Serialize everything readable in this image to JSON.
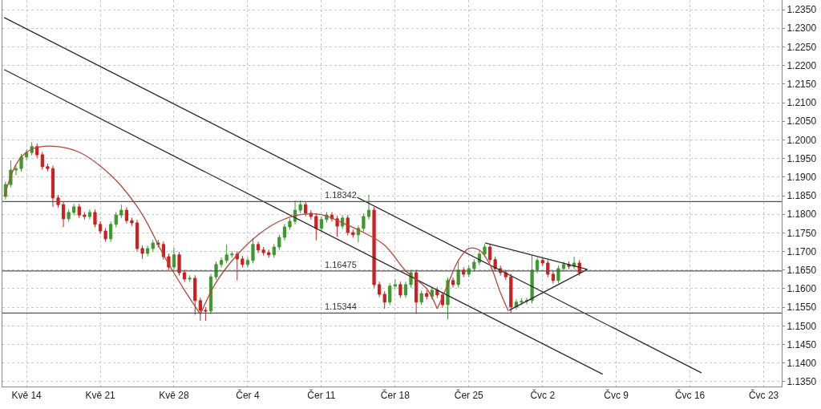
{
  "chart_data": {
    "type": "candlestick",
    "x": [
      "--05-12T00:00",
      "--05-12T12:00",
      "--05-13T00:00",
      "--05-13T12:00",
      "--05-14T00:00",
      "--05-14T12:00",
      "--05-15T00:00",
      "--05-15T12:00",
      "--05-16T00:00",
      "--05-16T12:00",
      "--05-17T00:00",
      "--05-17T12:00",
      "--05-18T00:00",
      "--05-18T12:00",
      "--05-19T00:00",
      "--05-19T12:00",
      "--05-20T00:00",
      "--05-20T12:00",
      "--05-21T00:00",
      "--05-21T12:00",
      "--05-22T00:00",
      "--05-22T12:00",
      "--05-23T00:00",
      "--05-23T12:00",
      "--05-24T00:00",
      "--05-24T12:00",
      "--05-25T00:00",
      "--05-25T12:00",
      "--05-26T00:00",
      "--05-26T12:00",
      "--05-27T00:00",
      "--05-27T12:00",
      "--05-28T00:00",
      "--05-28T12:00",
      "--05-29T00:00",
      "--05-29T12:00",
      "--05-30T00:00",
      "--05-30T12:00",
      "--05-31T00:00",
      "--05-31T12:00",
      "--06-01T00:00",
      "--06-01T12:00",
      "--06-02T00:00",
      "--06-02T12:00",
      "--06-03T00:00",
      "--06-03T12:00",
      "--06-04T00:00",
      "--06-04T12:00",
      "--06-05T00:00",
      "--06-05T12:00",
      "--06-06T00:00",
      "--06-06T12:00",
      "--06-07T00:00",
      "--06-07T12:00",
      "--06-08T00:00",
      "--06-08T12:00",
      "--06-09T00:00",
      "--06-09T12:00",
      "--06-10T00:00",
      "--06-10T12:00",
      "--06-11T00:00",
      "--06-11T12:00",
      "--06-12T00:00",
      "--06-12T12:00",
      "--06-13T00:00",
      "--06-13T12:00",
      "--06-14T00:00",
      "--06-14T12:00",
      "--06-15T00:00",
      "--06-15T12:00",
      "--06-16T00:00",
      "--06-16T12:00",
      "--06-17T00:00",
      "--06-17T12:00",
      "--06-18T00:00",
      "--06-18T12:00",
      "--06-19T00:00",
      "--06-19T12:00",
      "--06-20T00:00",
      "--06-20T12:00",
      "--06-21T00:00",
      "--06-21T12:00",
      "--06-22T00:00",
      "--06-22T12:00",
      "--06-23T00:00",
      "--06-23T12:00",
      "--06-24T00:00",
      "--06-24T12:00",
      "--06-25T00:00",
      "--06-25T12:00",
      "--06-26T00:00",
      "--06-26T12:00",
      "--06-27T00:00",
      "--06-27T12:00",
      "--06-28T00:00",
      "--06-28T12:00",
      "--06-29T00:00",
      "--06-29T12:00",
      "--06-30T00:00",
      "--06-30T12:00",
      "--07-01T00:00",
      "--07-01T12:00",
      "--07-02T00:00",
      "--07-02T12:00",
      "--07-03T00:00",
      "--07-03T12:00",
      "--07-04T00:00",
      "--07-04T12:00",
      "--07-05T00:00",
      "--07-05T12:00"
    ],
    "ohlc": [
      [
        1.1848,
        1.1888,
        1.184,
        1.188
      ],
      [
        1.188,
        1.1945,
        1.1872,
        1.1919
      ],
      [
        1.1919,
        1.1931,
        1.1905,
        1.1923
      ],
      [
        1.1923,
        1.1962,
        1.1915,
        1.1954
      ],
      [
        1.1954,
        1.1974,
        1.1946,
        1.1966
      ],
      [
        1.1966,
        1.1994,
        1.1958,
        1.1982
      ],
      [
        1.1982,
        1.199,
        1.1952,
        1.196
      ],
      [
        1.196,
        1.1968,
        1.192,
        1.1928
      ],
      [
        1.1928,
        1.1936,
        1.1915,
        1.1923
      ],
      [
        1.1923,
        1.1931,
        1.182,
        1.1844
      ],
      [
        1.1844,
        1.1852,
        1.1818,
        1.1826
      ],
      [
        1.1826,
        1.1834,
        1.1766,
        1.1788
      ],
      [
        1.1788,
        1.1813,
        1.178,
        1.1805
      ],
      [
        1.1805,
        1.1828,
        1.1797,
        1.182
      ],
      [
        1.182,
        1.1828,
        1.179,
        1.1798
      ],
      [
        1.1798,
        1.1806,
        1.1786,
        1.1794
      ],
      [
        1.1794,
        1.1813,
        1.1786,
        1.1805
      ],
      [
        1.1805,
        1.1813,
        1.1765,
        1.1773
      ],
      [
        1.1773,
        1.1781,
        1.1747,
        1.1755
      ],
      [
        1.1755,
        1.1763,
        1.1726,
        1.1734
      ],
      [
        1.1734,
        1.1781,
        1.1726,
        1.1773
      ],
      [
        1.1773,
        1.1806,
        1.1765,
        1.1798
      ],
      [
        1.1798,
        1.1826,
        1.179,
        1.1811
      ],
      [
        1.1811,
        1.1819,
        1.1775,
        1.1783
      ],
      [
        1.1783,
        1.1791,
        1.1769,
        1.1777
      ],
      [
        1.1777,
        1.1785,
        1.17,
        1.1708
      ],
      [
        1.1708,
        1.1716,
        1.168,
        1.1695
      ],
      [
        1.1695,
        1.1716,
        1.1687,
        1.1708
      ],
      [
        1.1708,
        1.1731,
        1.17,
        1.1723
      ],
      [
        1.1723,
        1.1731,
        1.1711,
        1.1719
      ],
      [
        1.1719,
        1.1727,
        1.1678,
        1.1686
      ],
      [
        1.1686,
        1.1694,
        1.165,
        1.1658
      ],
      [
        1.1658,
        1.171,
        1.165,
        1.1691
      ],
      [
        1.1691,
        1.1699,
        1.1635,
        1.1643
      ],
      [
        1.1643,
        1.1651,
        1.1618,
        1.1626
      ],
      [
        1.1626,
        1.1636,
        1.1618,
        1.1628
      ],
      [
        1.1628,
        1.1636,
        1.153,
        1.1568
      ],
      [
        1.1568,
        1.1576,
        1.1514,
        1.1542
      ],
      [
        1.1542,
        1.155,
        1.1514,
        1.154
      ],
      [
        1.154,
        1.164,
        1.1532,
        1.1632
      ],
      [
        1.1632,
        1.1673,
        1.1624,
        1.1665
      ],
      [
        1.1665,
        1.1684,
        1.1657,
        1.1676
      ],
      [
        1.1676,
        1.1719,
        1.1668,
        1.1691
      ],
      [
        1.1691,
        1.1701,
        1.1683,
        1.1693
      ],
      [
        1.1693,
        1.1701,
        1.1622,
        1.168
      ],
      [
        1.168,
        1.1688,
        1.1657,
        1.1665
      ],
      [
        1.1665,
        1.1684,
        1.1657,
        1.1676
      ],
      [
        1.1676,
        1.1736,
        1.1668,
        1.1719
      ],
      [
        1.1719,
        1.1727,
        1.1696,
        1.1704
      ],
      [
        1.1704,
        1.1712,
        1.1689,
        1.1697
      ],
      [
        1.1697,
        1.1705,
        1.1683,
        1.1691
      ],
      [
        1.1691,
        1.172,
        1.1683,
        1.1712
      ],
      [
        1.1712,
        1.1746,
        1.1704,
        1.1738
      ],
      [
        1.1738,
        1.1774,
        1.173,
        1.1766
      ],
      [
        1.1766,
        1.1789,
        1.1758,
        1.1781
      ],
      [
        1.1781,
        1.1837,
        1.1773,
        1.1811
      ],
      [
        1.1811,
        1.1837,
        1.1803,
        1.1826
      ],
      [
        1.1826,
        1.1834,
        1.1795,
        1.1803
      ],
      [
        1.1803,
        1.1811,
        1.1786,
        1.1794
      ],
      [
        1.1794,
        1.1802,
        1.173,
        1.1762
      ],
      [
        1.1762,
        1.1794,
        1.1754,
        1.1786
      ],
      [
        1.1786,
        1.1806,
        1.1778,
        1.1798
      ],
      [
        1.1798,
        1.1806,
        1.178,
        1.1788
      ],
      [
        1.1788,
        1.1796,
        1.174,
        1.1768
      ],
      [
        1.1768,
        1.1798,
        1.176,
        1.179
      ],
      [
        1.179,
        1.1798,
        1.1743,
        1.1751
      ],
      [
        1.1751,
        1.1759,
        1.1737,
        1.1745
      ],
      [
        1.1745,
        1.177,
        1.1725,
        1.1762
      ],
      [
        1.1762,
        1.1802,
        1.1754,
        1.1794
      ],
      [
        1.1794,
        1.1852,
        1.1786,
        1.1811
      ],
      [
        1.1811,
        1.1819,
        1.1603,
        1.1611
      ],
      [
        1.1611,
        1.1619,
        1.1577,
        1.1585
      ],
      [
        1.1585,
        1.1593,
        1.1546,
        1.1564
      ],
      [
        1.1564,
        1.1615,
        1.1556,
        1.1607
      ],
      [
        1.1607,
        1.1625,
        1.1599,
        1.1611
      ],
      [
        1.1611,
        1.1619,
        1.1575,
        1.1583
      ],
      [
        1.1583,
        1.1619,
        1.1575,
        1.1611
      ],
      [
        1.1611,
        1.1651,
        1.1603,
        1.1643
      ],
      [
        1.1643,
        1.1651,
        1.1532,
        1.1564
      ],
      [
        1.1564,
        1.1595,
        1.1556,
        1.1587
      ],
      [
        1.1587,
        1.1595,
        1.1571,
        1.1579
      ],
      [
        1.1579,
        1.1604,
        1.1571,
        1.1596
      ],
      [
        1.1596,
        1.1604,
        1.1575,
        1.1583
      ],
      [
        1.1583,
        1.1591,
        1.1549,
        1.1557
      ],
      [
        1.1557,
        1.163,
        1.1518,
        1.1622
      ],
      [
        1.1622,
        1.163,
        1.1603,
        1.1611
      ],
      [
        1.1611,
        1.1676,
        1.1603,
        1.165
      ],
      [
        1.165,
        1.1658,
        1.1631,
        1.1639
      ],
      [
        1.1639,
        1.1662,
        1.1631,
        1.1654
      ],
      [
        1.1654,
        1.1679,
        1.1646,
        1.1671
      ],
      [
        1.1671,
        1.1701,
        1.1663,
        1.1693
      ],
      [
        1.1693,
        1.172,
        1.1685,
        1.1712
      ],
      [
        1.1712,
        1.172,
        1.167,
        1.1678
      ],
      [
        1.1678,
        1.1686,
        1.1646,
        1.1654
      ],
      [
        1.1654,
        1.1662,
        1.1635,
        1.1643
      ],
      [
        1.1643,
        1.1651,
        1.1624,
        1.1632
      ],
      [
        1.1632,
        1.164,
        1.1536,
        1.1551
      ],
      [
        1.1551,
        1.1572,
        1.1543,
        1.1564
      ],
      [
        1.1564,
        1.1574,
        1.1556,
        1.1566
      ],
      [
        1.1566,
        1.1576,
        1.1558,
        1.1568
      ],
      [
        1.1568,
        1.169,
        1.156,
        1.165
      ],
      [
        1.165,
        1.1684,
        1.1642,
        1.1676
      ],
      [
        1.1676,
        1.1684,
        1.1661,
        1.1669
      ],
      [
        1.1669,
        1.1677,
        1.1631,
        1.1639
      ],
      [
        1.1639,
        1.1647,
        1.1614,
        1.1622
      ],
      [
        1.1622,
        1.1662,
        1.1614,
        1.1654
      ],
      [
        1.1654,
        1.1673,
        1.1646,
        1.1665
      ],
      [
        1.1665,
        1.1673,
        1.1652,
        1.166
      ],
      [
        1.166,
        1.1686,
        1.1652,
        1.1669
      ],
      [
        1.1669,
        1.1677,
        1.1635,
        1.1643
      ]
    ],
    "colors": [
      "#3c9a2e",
      "#3c9a2e",
      "#3c9a2e",
      "#3c9a2e",
      "#3c9a2e",
      "#3c9a2e",
      "#cc1f1f",
      "#cc1f1f",
      "#cc1f1f",
      "#cc1f1f",
      "#cc1f1f",
      "#cc1f1f",
      "#3c9a2e",
      "#3c9a2e",
      "#cc1f1f",
      "#cc1f1f",
      "#3c9a2e",
      "#cc1f1f",
      "#cc1f1f",
      "#cc1f1f",
      "#3c9a2e",
      "#3c9a2e",
      "#3c9a2e",
      "#cc1f1f",
      "#cc1f1f",
      "#cc1f1f",
      "#cc1f1f",
      "#3c9a2e",
      "#3c9a2e",
      "#cc1f1f",
      "#cc1f1f",
      "#cc1f1f",
      "#3c9a2e",
      "#cc1f1f",
      "#cc1f1f",
      "#3c9a2e",
      "#cc1f1f",
      "#cc1f1f",
      "#cc1f1f",
      "#3c9a2e",
      "#3c9a2e",
      "#3c9a2e",
      "#3c9a2e",
      "#3c9a2e",
      "#cc1f1f",
      "#cc1f1f",
      "#3c9a2e",
      "#3c9a2e",
      "#cc1f1f",
      "#cc1f1f",
      "#cc1f1f",
      "#3c9a2e",
      "#3c9a2e",
      "#3c9a2e",
      "#3c9a2e",
      "#3c9a2e",
      "#3c9a2e",
      "#cc1f1f",
      "#cc1f1f",
      "#cc1f1f",
      "#3c9a2e",
      "#3c9a2e",
      "#cc1f1f",
      "#cc1f1f",
      "#3c9a2e",
      "#cc1f1f",
      "#cc1f1f",
      "#3c9a2e",
      "#3c9a2e",
      "#3c9a2e",
      "#cc1f1f",
      "#cc1f1f",
      "#cc1f1f",
      "#3c9a2e",
      "#3c9a2e",
      "#cc1f1f",
      "#3c9a2e",
      "#3c9a2e",
      "#cc1f1f",
      "#3c9a2e",
      "#cc1f1f",
      "#3c9a2e",
      "#cc1f1f",
      "#cc1f1f",
      "#3c9a2e",
      "#cc1f1f",
      "#3c9a2e",
      "#cc1f1f",
      "#3c9a2e",
      "#3c9a2e",
      "#3c9a2e",
      "#3c9a2e",
      "#cc1f1f",
      "#cc1f1f",
      "#cc1f1f",
      "#cc1f1f",
      "#cc1f1f",
      "#3c9a2e",
      "#3c9a2e",
      "#3c9a2e",
      "#3c9a2e",
      "#3c9a2e",
      "#cc1f1f",
      "#cc1f1f",
      "#cc1f1f",
      "#3c9a2e",
      "#3c9a2e",
      "#cc1f1f",
      "#3c9a2e",
      "#cc1f1f"
    ],
    "series": [
      {
        "type": "line",
        "color": "#2b2b2b",
        "x": [
          "--05-11T21:00",
          "--07-17T02:00"
        ],
        "values": [
          1.2329,
          1.1374
        ]
      },
      {
        "type": "line",
        "color": "#2b2b2b",
        "x": [
          "--05-11T21:00",
          "--07-07T17:00"
        ],
        "values": [
          1.2189,
          1.137
        ]
      },
      {
        "type": "line",
        "color": "#2b2b2b",
        "x": [
          "--06-26T13:00",
          "--07-06T06:00"
        ],
        "values": [
          1.1723,
          1.1652
        ]
      },
      {
        "type": "line",
        "color": "#2b2b2b",
        "x": [
          "--06-28T20:00",
          "--07-06T06:00"
        ],
        "values": [
          1.1542,
          1.1652
        ]
      },
      {
        "type": "line",
        "color": "#b8463a",
        "x": [
          "--05-11T21:00",
          "--05-13",
          "--05-14",
          "--05-15",
          "--05-17",
          "--05-19",
          "--05-21",
          "--05-23",
          "--05-25",
          "--05-27",
          "--05-29",
          "--05-30",
          "--05-30T12:00"
        ],
        "values": [
          1.1848,
          1.1934,
          1.1967,
          1.198,
          1.1982,
          1.1967,
          1.193,
          1.1876,
          1.1799,
          1.1691,
          1.1596,
          1.1553,
          1.1531
        ]
      },
      {
        "type": "line",
        "color": "#b8463a",
        "x": [
          "--05-30T12:00",
          "--06-01",
          "--06-03",
          "--06-05",
          "--06-07",
          "--06-09",
          "--06-11",
          "--06-13",
          "--06-15",
          "--06-17",
          "--06-19",
          "--06-21",
          "--06-22"
        ],
        "values": [
          1.1531,
          1.1617,
          1.1691,
          1.1745,
          1.1781,
          1.1799,
          1.1799,
          1.1777,
          1.1751,
          1.1717,
          1.1648,
          1.16,
          1.1546
        ]
      },
      {
        "type": "line",
        "color": "#b8463a",
        "x": [
          "--06-22",
          "--06-23",
          "--06-24",
          "--06-25",
          "--06-26",
          "--06-27",
          "--06-28",
          "--06-28T18:00"
        ],
        "values": [
          1.1546,
          1.1611,
          1.1676,
          1.1708,
          1.1704,
          1.1665,
          1.1589,
          1.154
        ]
      }
    ],
    "ref_lines": [
      {
        "axis": "y",
        "value": 1.18342,
        "label": "1.18342",
        "color": "#555555"
      },
      {
        "axis": "y",
        "value": 1.16475,
        "label": "1.16475",
        "color": "#555555"
      },
      {
        "axis": "y",
        "value": 1.15344,
        "label": "1.15344",
        "color": "#555555"
      }
    ],
    "xlim": [
      "--05-11T17:00",
      "--07-24T17:00"
    ],
    "xticks": [
      {
        "value": "--05-14",
        "label": "Kvě 14"
      },
      {
        "value": "--05-21",
        "label": "Kvě 21"
      },
      {
        "value": "--05-28",
        "label": "Kvě 28"
      },
      {
        "value": "--06-04",
        "label": "Čer 4"
      },
      {
        "value": "--06-11",
        "label": "Čer 11"
      },
      {
        "value": "--06-18",
        "label": "Čer 18"
      },
      {
        "value": "--06-25",
        "label": "Čer 25"
      },
      {
        "value": "--07-02",
        "label": "Čvc 2"
      },
      {
        "value": "--07-09",
        "label": "Čvc 9"
      },
      {
        "value": "--07-16",
        "label": "Čvc 16"
      },
      {
        "value": "--07-23",
        "label": "Čvc 23"
      }
    ],
    "ylim": [
      1.1337,
      1.2376
    ],
    "yticks": [
      {
        "value": 1.135,
        "label": "1.1350"
      },
      {
        "value": 1.14,
        "label": "1.1400"
      },
      {
        "value": 1.145,
        "label": "1.1450"
      },
      {
        "value": 1.15,
        "label": "1.1500"
      },
      {
        "value": 1.155,
        "label": "1.1550"
      },
      {
        "value": 1.16,
        "label": "1.1600"
      },
      {
        "value": 1.165,
        "label": "1.1650"
      },
      {
        "value": 1.17,
        "label": "1.1700"
      },
      {
        "value": 1.175,
        "label": "1.1750"
      },
      {
        "value": 1.18,
        "label": "1.1800"
      },
      {
        "value": 1.185,
        "label": "1.1850"
      },
      {
        "value": 1.19,
        "label": "1.1900"
      },
      {
        "value": 1.195,
        "label": "1.1950"
      },
      {
        "value": 1.2,
        "label": "1.2000"
      },
      {
        "value": 1.205,
        "label": "1.2050"
      },
      {
        "value": 1.21,
        "label": "1.2100"
      },
      {
        "value": 1.215,
        "label": "1.2150"
      },
      {
        "value": 1.22,
        "label": "1.2200"
      },
      {
        "value": 1.225,
        "label": "1.2250"
      },
      {
        "value": 1.23,
        "label": "1.2300"
      },
      {
        "value": 1.235,
        "label": "1.2350"
      }
    ],
    "grid": true
  }
}
